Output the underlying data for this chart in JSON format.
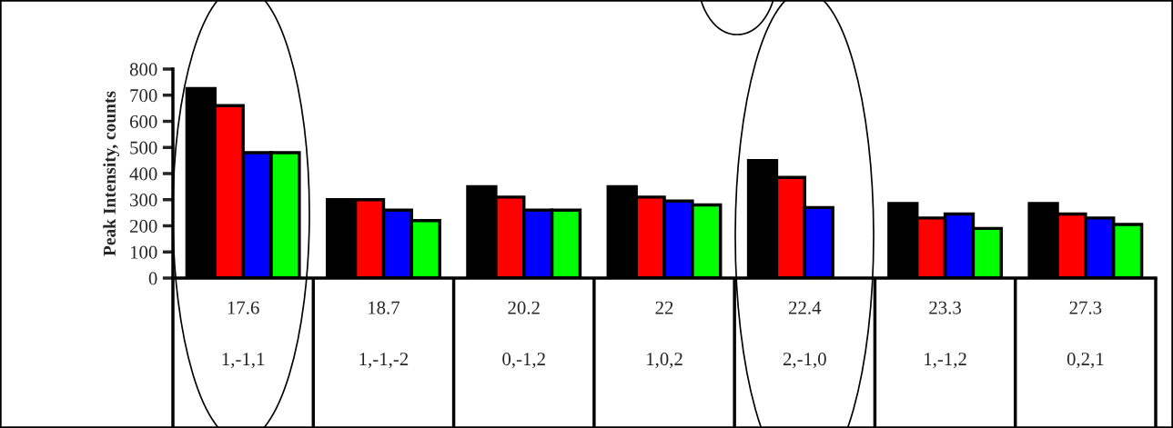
{
  "chart_data": {
    "type": "bar",
    "ylabel": "Peak Intensity, counts",
    "categories": [
      "17.6\n1,-1,1",
      "18.7\n1,-1,-2",
      "20.2\n0,-1,2",
      "22\n1,0,2",
      "22.4\n2,-1,0",
      "23.3\n1,-1,2",
      "27.3\n0,2,1"
    ],
    "series": [
      {
        "color": "#000000",
        "values": [
          725,
          300,
          350,
          350,
          450,
          285,
          285
        ]
      },
      {
        "color": "#ff0000",
        "values": [
          660,
          300,
          310,
          310,
          385,
          230,
          245
        ]
      },
      {
        "color": "#0000ff",
        "values": [
          480,
          260,
          260,
          295,
          270,
          245,
          230
        ]
      },
      {
        "color": "#00ff00",
        "values": [
          480,
          220,
          260,
          280,
          null,
          190,
          205
        ]
      }
    ],
    "ylim": [
      0,
      800
    ],
    "yticks": [
      0,
      100,
      200,
      300,
      400,
      500,
      600,
      700,
      800
    ],
    "grid": false,
    "legend": false
  }
}
